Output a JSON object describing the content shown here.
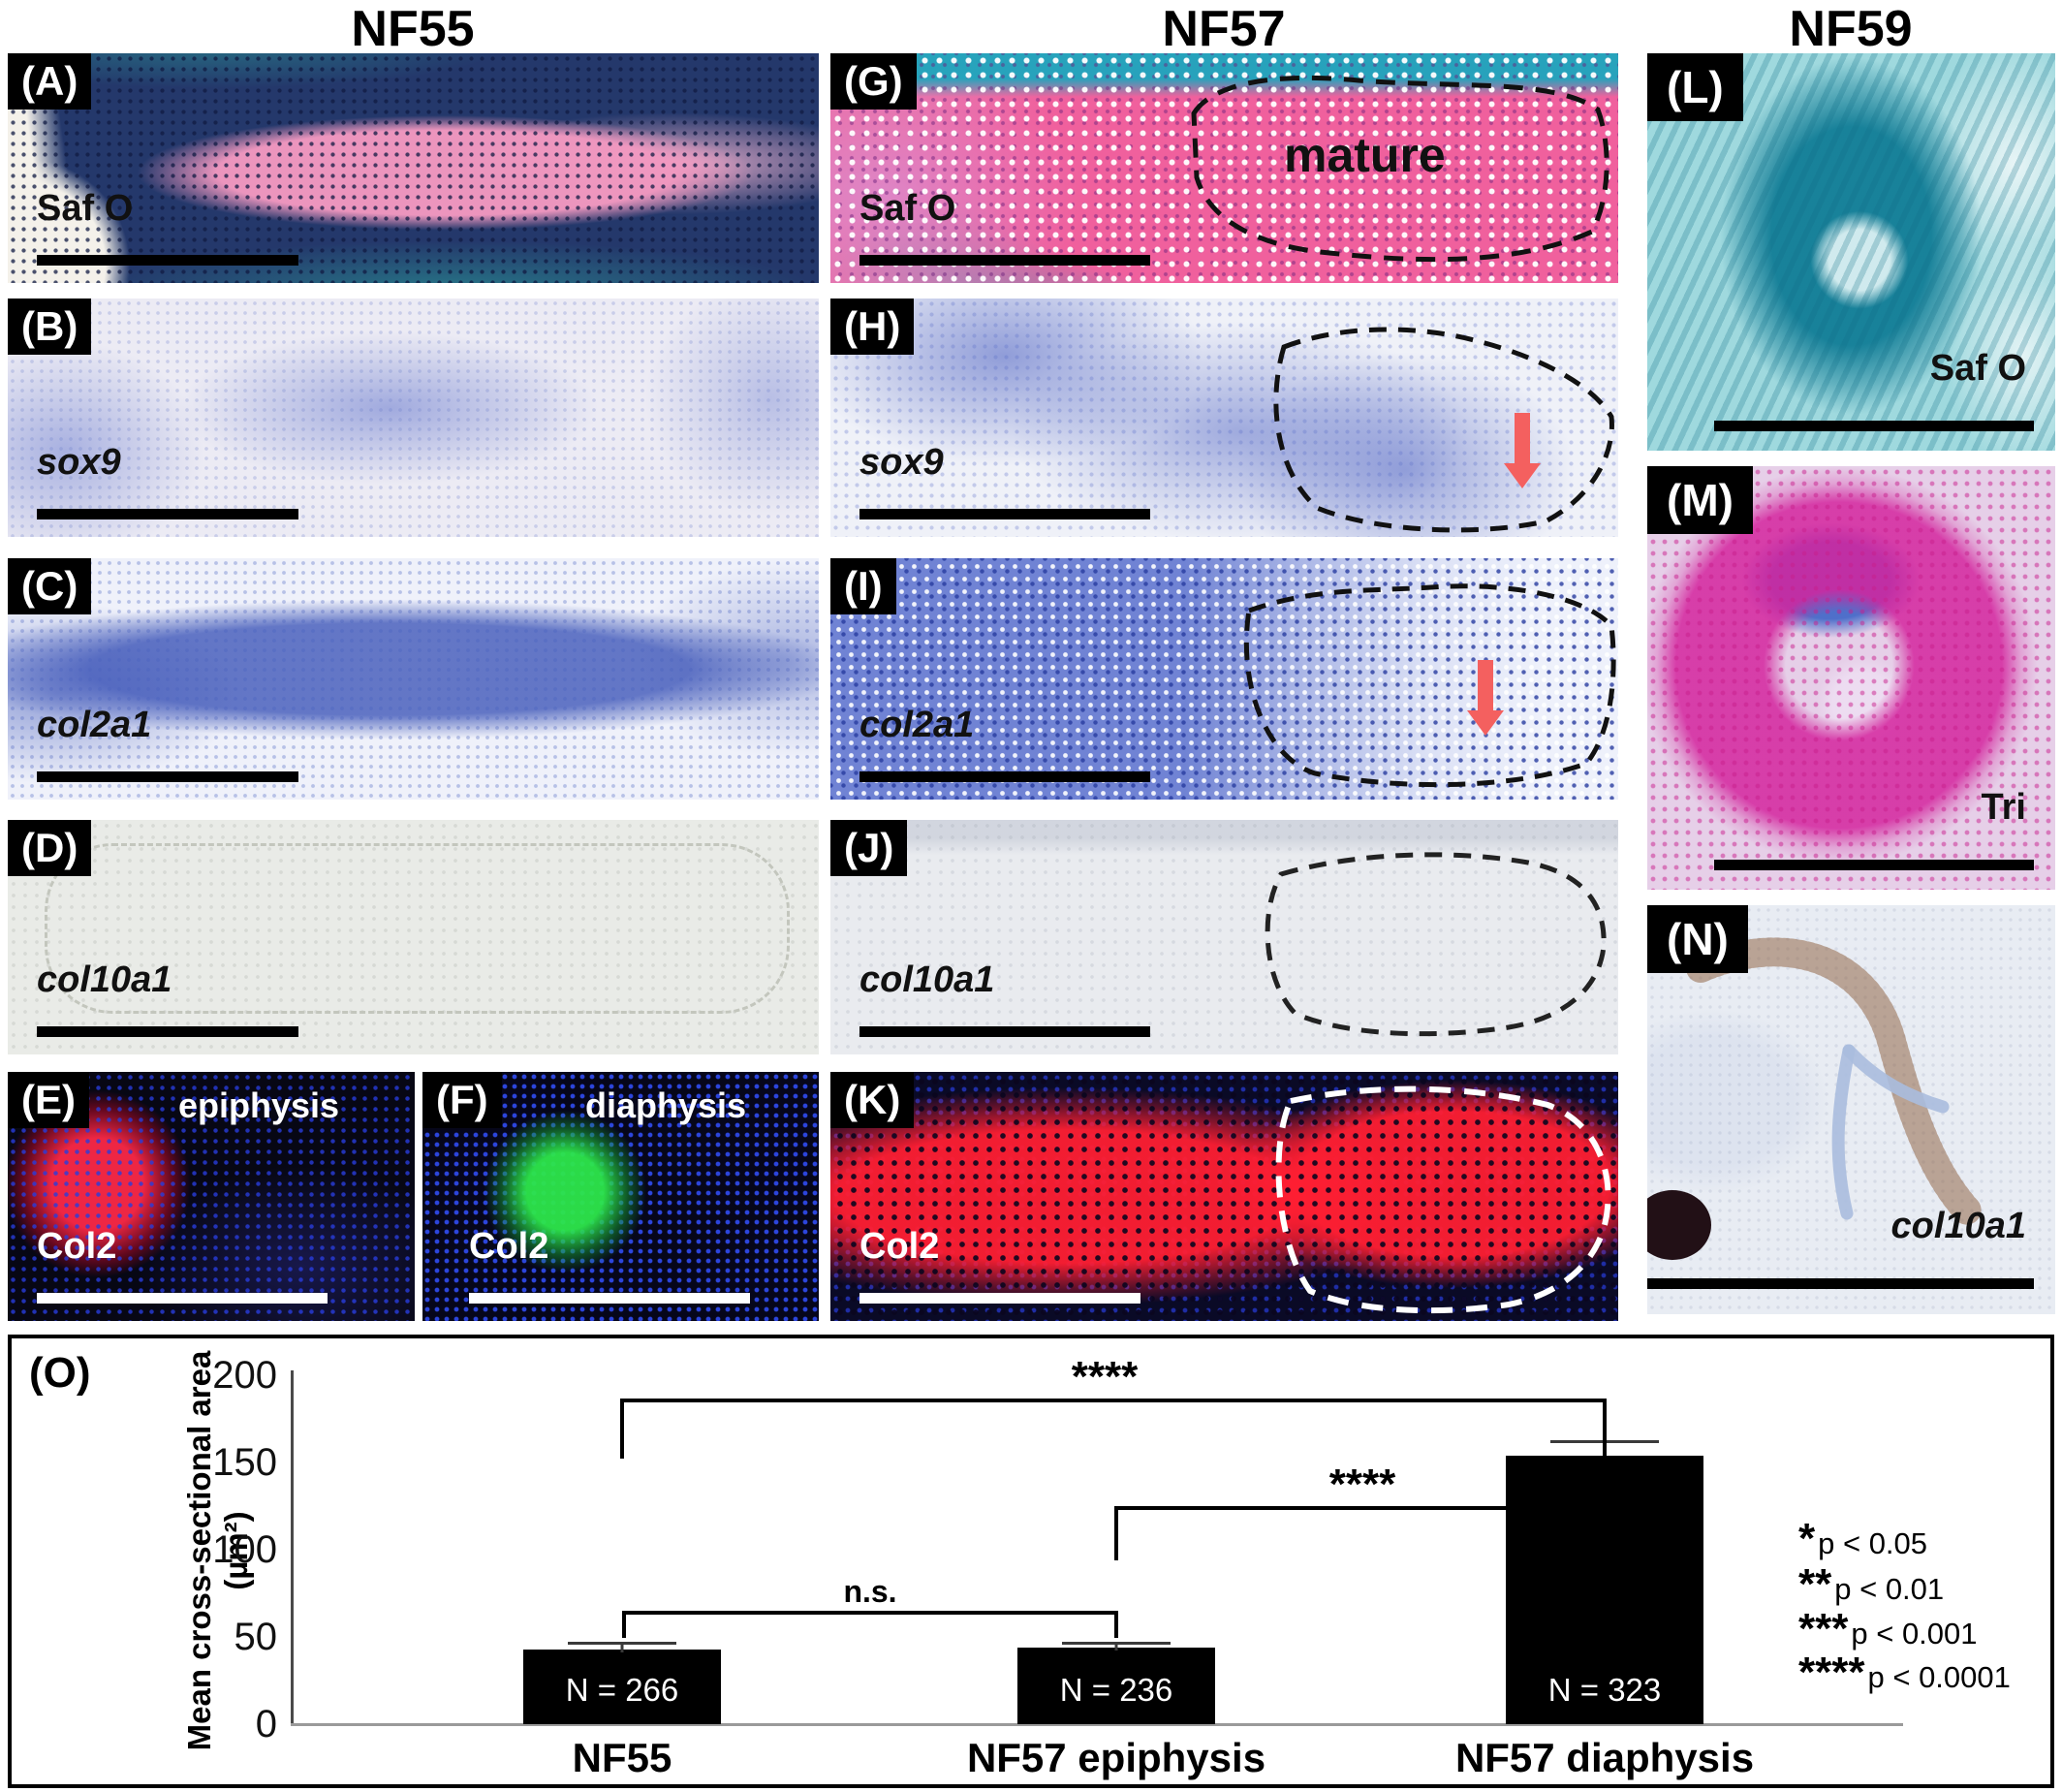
{
  "columns": {
    "c1": "NF55",
    "c2": "NF57",
    "c3": "NF59"
  },
  "panels": {
    "A": {
      "letter": "(A)",
      "stain": "Saf O"
    },
    "B": {
      "letter": "(B)",
      "stain": "sox9"
    },
    "C": {
      "letter": "(C)",
      "stain": "col2a1"
    },
    "D": {
      "letter": "(D)",
      "stain": "col10a1"
    },
    "E": {
      "letter": "(E)",
      "stain": "Col2",
      "region": "epiphysis"
    },
    "F": {
      "letter": "(F)",
      "stain": "Col2",
      "region": "diaphysis"
    },
    "G": {
      "letter": "(G)",
      "stain": "Saf O",
      "annotation": "mature"
    },
    "H": {
      "letter": "(H)",
      "stain": "sox9"
    },
    "I": {
      "letter": "(I)",
      "stain": "col2a1"
    },
    "J": {
      "letter": "(J)",
      "stain": "col10a1"
    },
    "K": {
      "letter": "(K)",
      "stain": "Col2"
    },
    "L": {
      "letter": "(L)",
      "stain": "Saf O"
    },
    "M": {
      "letter": "(M)",
      "stain": "Tri"
    },
    "N": {
      "letter": "(N)",
      "stain": "col10a1"
    },
    "O": {
      "letter": "(O)"
    }
  },
  "chart_data": {
    "type": "bar",
    "title": "",
    "xlabel": "",
    "ylabel": "Mean cross-sectional area (µm²)",
    "ylabel_line1": "Mean cross-sectional area",
    "ylabel_line2": "(µm²)",
    "categories": [
      "NF55",
      "NF57 epiphysis",
      "NF57 diaphysis"
    ],
    "values": [
      43,
      44,
      154
    ],
    "errors_upper": [
      4,
      3,
      9
    ],
    "n_labels": [
      "N = 266",
      "N = 236",
      "N = 323"
    ],
    "ylim": [
      0,
      200
    ],
    "yticks": [
      200,
      150,
      100,
      50,
      0
    ],
    "ytick_labels": [
      "200",
      "150",
      "100",
      "50",
      "0"
    ],
    "bar_color": "#000000",
    "grid": false,
    "significance": [
      {
        "label": "****",
        "from": "NF55",
        "to": "NF57 diaphysis"
      },
      {
        "label": "****",
        "from": "NF57 epiphysis",
        "to": "NF57 diaphysis"
      },
      {
        "label": "n.s.",
        "from": "NF55",
        "to": "NF57 epiphysis"
      }
    ],
    "legend": [
      {
        "stars": "*",
        "text": "p < 0.05"
      },
      {
        "stars": "**",
        "text": "p < 0.01"
      },
      {
        "stars": "***",
        "text": "p < 0.001"
      },
      {
        "stars": "****",
        "text": "p < 0.0001"
      }
    ],
    "legend_position": "right"
  },
  "colors": {
    "arrow_red": "#f4605f",
    "safO_pink": "#ec6ca4",
    "safO_teal": "#16a8be",
    "ish_blue": "#4058b9",
    "fluor_red": "#ff1e32",
    "fluor_green": "#2de64b",
    "fluor_blue": "#3250ff",
    "trichrome_magenta": "#d4249e",
    "bar_black": "#000000"
  }
}
